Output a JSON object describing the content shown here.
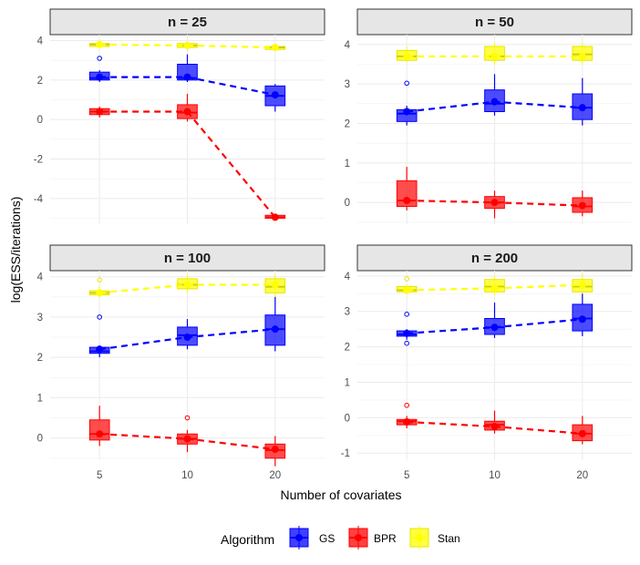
{
  "chart_data": {
    "type": "box",
    "xlabel": "Number of covariates",
    "ylabel": "log(ESS/iterations)",
    "categories": [
      "5",
      "10",
      "20"
    ],
    "legend": {
      "title": "Algorithm",
      "position": "bottom",
      "entries": [
        {
          "name": "GS",
          "color": "#0000ff"
        },
        {
          "name": "BPR",
          "color": "#ff0000"
        },
        {
          "name": "Stan",
          "color": "#ffff00"
        }
      ]
    },
    "panels": [
      {
        "title": "n = 25",
        "ylim": [
          -5.3,
          4.3
        ],
        "yticks": [
          4,
          2,
          0,
          -2,
          -4
        ],
        "yticklabels": [
          "4",
          "2",
          "0",
          "-2",
          "-4"
        ],
        "show_xticks": false,
        "series": [
          {
            "name": "Stan",
            "color": "#ffff00",
            "boxes": [
              {
                "q1": 3.7,
                "median": 3.8,
                "q3": 3.85,
                "lower": 3.6,
                "upper": 3.95,
                "mean": 3.8,
                "outliers": []
              },
              {
                "q1": 3.65,
                "median": 3.75,
                "q3": 3.85,
                "lower": 3.55,
                "upper": 3.95,
                "mean": 3.75,
                "outliers": []
              },
              {
                "q1": 3.55,
                "median": 3.65,
                "q3": 3.7,
                "lower": 3.5,
                "upper": 3.75,
                "mean": 3.65,
                "outliers": []
              }
            ]
          },
          {
            "name": "GS",
            "color": "#0000ff",
            "boxes": [
              {
                "q1": 2.0,
                "median": 2.1,
                "q3": 2.4,
                "lower": 1.9,
                "upper": 2.5,
                "mean": 2.15,
                "outliers": [
                  3.1
                ]
              },
              {
                "q1": 2.0,
                "median": 2.1,
                "q3": 2.8,
                "lower": 1.9,
                "upper": 3.3,
                "mean": 2.15,
                "outliers": []
              },
              {
                "q1": 0.7,
                "median": 1.2,
                "q3": 1.7,
                "lower": 0.4,
                "upper": 1.8,
                "mean": 1.25,
                "outliers": []
              }
            ]
          },
          {
            "name": "BPR",
            "color": "#ff0000",
            "boxes": [
              {
                "q1": 0.25,
                "median": 0.4,
                "q3": 0.55,
                "lower": 0.1,
                "upper": 0.65,
                "mean": 0.4,
                "outliers": []
              },
              {
                "q1": 0.05,
                "median": 0.35,
                "q3": 0.75,
                "lower": -0.1,
                "upper": 1.3,
                "mean": 0.4,
                "outliers": []
              },
              {
                "q1": -5.0,
                "median": -4.95,
                "q3": -4.85,
                "lower": -5.1,
                "upper": -4.8,
                "mean": -4.95,
                "outliers": []
              }
            ]
          }
        ]
      },
      {
        "title": "n = 50",
        "ylim": [
          -0.55,
          4.25
        ],
        "yticks": [
          4,
          3,
          2,
          1,
          0
        ],
        "yticklabels": [
          "4",
          "3",
          "2",
          "1",
          "0"
        ],
        "show_xticks": false,
        "series": [
          {
            "name": "Stan",
            "color": "#ffff00",
            "boxes": [
              {
                "q1": 3.6,
                "median": 3.7,
                "q3": 3.85,
                "lower": 3.55,
                "upper": 3.95,
                "mean": 3.7,
                "outliers": []
              },
              {
                "q1": 3.6,
                "median": 3.7,
                "q3": 3.95,
                "lower": 3.5,
                "upper": 4.05,
                "mean": 3.7,
                "outliers": []
              },
              {
                "q1": 3.6,
                "median": 3.75,
                "q3": 3.95,
                "lower": 3.5,
                "upper": 4.05,
                "mean": 3.7,
                "outliers": []
              }
            ]
          },
          {
            "name": "GS",
            "color": "#0000ff",
            "boxes": [
              {
                "q1": 2.05,
                "median": 2.25,
                "q3": 2.35,
                "lower": 1.95,
                "upper": 2.45,
                "mean": 2.3,
                "outliers": [
                  3.02
                ]
              },
              {
                "q1": 2.3,
                "median": 2.5,
                "q3": 2.85,
                "lower": 2.2,
                "upper": 3.25,
                "mean": 2.55,
                "outliers": []
              },
              {
                "q1": 2.1,
                "median": 2.4,
                "q3": 2.75,
                "lower": 1.95,
                "upper": 3.15,
                "mean": 2.4,
                "outliers": []
              }
            ]
          },
          {
            "name": "BPR",
            "color": "#ff0000",
            "boxes": [
              {
                "q1": -0.1,
                "median": 0.05,
                "q3": 0.55,
                "lower": -0.2,
                "upper": 0.9,
                "mean": 0.05,
                "outliers": []
              },
              {
                "q1": -0.15,
                "median": -0.0,
                "q3": 0.15,
                "lower": -0.4,
                "upper": 0.3,
                "mean": 0.0,
                "outliers": []
              },
              {
                "q1": -0.25,
                "median": -0.1,
                "q3": 0.12,
                "lower": -0.35,
                "upper": 0.3,
                "mean": -0.08,
                "outliers": []
              }
            ]
          }
        ]
      },
      {
        "title": "n = 100",
        "ylim": [
          -0.55,
          4.15
        ],
        "yticks": [
          4,
          3,
          2,
          1,
          0
        ],
        "yticklabels": [
          "4",
          "3",
          "2",
          "1",
          "0"
        ],
        "show_xticks": true,
        "series": [
          {
            "name": "Stan",
            "color": "#ffff00",
            "boxes": [
              {
                "q1": 3.55,
                "median": 3.6,
                "q3": 3.65,
                "lower": 3.5,
                "upper": 3.75,
                "mean": 3.6,
                "outliers": [
                  3.92
                ]
              },
              {
                "q1": 3.7,
                "median": 3.8,
                "q3": 3.95,
                "lower": 3.6,
                "upper": 4.05,
                "mean": 3.8,
                "outliers": []
              },
              {
                "q1": 3.6,
                "median": 3.75,
                "q3": 3.95,
                "lower": 3.5,
                "upper": 4.05,
                "mean": 3.8,
                "outliers": []
              }
            ]
          },
          {
            "name": "GS",
            "color": "#0000ff",
            "boxes": [
              {
                "q1": 2.1,
                "median": 2.15,
                "q3": 2.25,
                "lower": 2.0,
                "upper": 2.3,
                "mean": 2.2,
                "outliers": [
                  3.0
                ]
              },
              {
                "q1": 2.3,
                "median": 2.55,
                "q3": 2.75,
                "lower": 2.2,
                "upper": 2.95,
                "mean": 2.5,
                "outliers": []
              },
              {
                "q1": 2.3,
                "median": 2.7,
                "q3": 3.05,
                "lower": 2.15,
                "upper": 3.5,
                "mean": 2.7,
                "outliers": []
              }
            ]
          },
          {
            "name": "BPR",
            "color": "#ff0000",
            "boxes": [
              {
                "q1": -0.05,
                "median": 0.1,
                "q3": 0.45,
                "lower": -0.2,
                "upper": 0.8,
                "mean": 0.1,
                "outliers": []
              },
              {
                "q1": -0.15,
                "median": -0.02,
                "q3": 0.1,
                "lower": -0.35,
                "upper": 0.2,
                "mean": -0.02,
                "outliers": [
                  0.5
                ]
              },
              {
                "q1": -0.5,
                "median": -0.3,
                "q3": -0.15,
                "lower": -0.7,
                "upper": 0.05,
                "mean": -0.28,
                "outliers": []
              }
            ]
          }
        ]
      },
      {
        "title": "n = 200",
        "ylim": [
          -1.2,
          4.15
        ],
        "yticks": [
          4,
          3,
          2,
          1,
          0,
          -1
        ],
        "yticklabels": [
          "4",
          "3",
          "2",
          "1",
          "0",
          "-1"
        ],
        "show_xticks": true,
        "series": [
          {
            "name": "Stan",
            "color": "#ffff00",
            "boxes": [
              {
                "q1": 3.55,
                "median": 3.6,
                "q3": 3.7,
                "lower": 3.5,
                "upper": 3.75,
                "mean": 3.6,
                "outliers": [
                  3.92
                ]
              },
              {
                "q1": 3.55,
                "median": 3.7,
                "q3": 3.9,
                "lower": 3.45,
                "upper": 4.0,
                "mean": 3.65,
                "outliers": []
              },
              {
                "q1": 3.55,
                "median": 3.7,
                "q3": 3.9,
                "lower": 3.45,
                "upper": 4.05,
                "mean": 3.75,
                "outliers": []
              }
            ]
          },
          {
            "name": "GS",
            "color": "#0000ff",
            "boxes": [
              {
                "q1": 2.3,
                "median": 2.35,
                "q3": 2.45,
                "lower": 2.2,
                "upper": 2.5,
                "mean": 2.38,
                "outliers": [
                  2.92,
                  2.1
                ]
              },
              {
                "q1": 2.35,
                "median": 2.55,
                "q3": 2.8,
                "lower": 2.25,
                "upper": 3.25,
                "mean": 2.55,
                "outliers": []
              },
              {
                "q1": 2.45,
                "median": 2.8,
                "q3": 3.2,
                "lower": 2.3,
                "upper": 3.5,
                "mean": 2.78,
                "outliers": []
              }
            ]
          },
          {
            "name": "BPR",
            "color": "#ff0000",
            "boxes": [
              {
                "q1": -0.2,
                "median": -0.1,
                "q3": -0.05,
                "lower": -0.3,
                "upper": 0.05,
                "mean": -0.12,
                "outliers": [
                  0.35
                ]
              },
              {
                "q1": -0.35,
                "median": -0.2,
                "q3": -0.1,
                "lower": -0.45,
                "upper": 0.2,
                "mean": -0.25,
                "outliers": []
              },
              {
                "q1": -0.65,
                "median": -0.45,
                "q3": -0.2,
                "lower": -0.75,
                "upper": 0.05,
                "mean": -0.45,
                "outliers": []
              }
            ]
          }
        ]
      }
    ]
  }
}
